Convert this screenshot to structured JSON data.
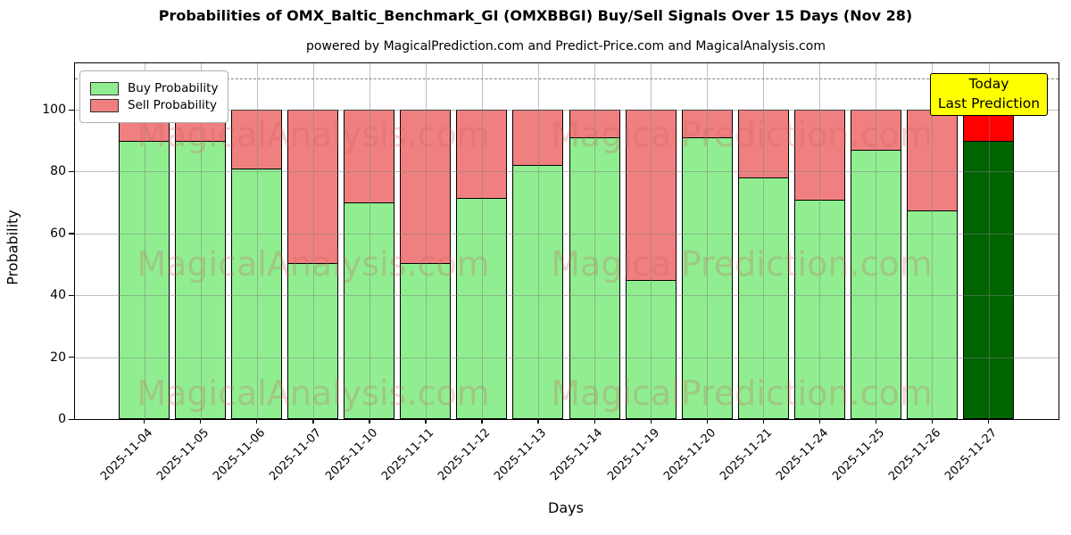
{
  "title": "Probabilities of OMX_Baltic_Benchmark_GI (OMXBBGI) Buy/Sell Signals Over 15 Days (Nov 28)",
  "subtitle": "powered by MagicalPrediction.com and Predict-Price.com and MagicalAnalysis.com",
  "axes": {
    "ylabel": "Probability",
    "xlabel": "Days",
    "yticks": [
      0,
      20,
      40,
      60,
      80,
      100
    ],
    "ylim": [
      0,
      115
    ],
    "dashed_line_y": 110,
    "grid": true
  },
  "legend": {
    "position": "upper left",
    "items": [
      {
        "label": "Buy Probability",
        "color": "#90EE90"
      },
      {
        "label": "Sell Probability",
        "color": "#F08080"
      }
    ]
  },
  "annotation": {
    "line1": "Today",
    "line2": "Last Prediction",
    "bg_color": "#FFFF00",
    "border_color": "#000000"
  },
  "watermarks": {
    "left_text": "MagicalAnalysis.com",
    "right_text": "MagicalPrediction.com"
  },
  "chart_data": {
    "type": "bar",
    "stacked": true,
    "title": "Probabilities of OMX_Baltic_Benchmark_GI (OMXBBGI) Buy/Sell Signals Over 15 Days (Nov 28)",
    "xlabel": "Days",
    "ylabel": "Probability",
    "ylim": [
      0,
      115
    ],
    "categories": [
      "2025-11-04",
      "2025-11-05",
      "2025-11-06",
      "2025-11-07",
      "2025-11-10",
      "2025-11-11",
      "2025-11-12",
      "2025-11-13",
      "2025-11-14",
      "2025-11-19",
      "2025-11-20",
      "2025-11-21",
      "2025-11-24",
      "2025-11-25",
      "2025-11-26",
      "2025-11-27"
    ],
    "series": [
      {
        "name": "Buy Probability",
        "color": "#90EE90",
        "values": [
          90,
          90,
          81,
          50.5,
          70,
          50.5,
          71.5,
          82,
          91,
          45,
          91,
          78,
          71,
          87,
          67.5,
          90
        ]
      },
      {
        "name": "Sell Probability",
        "color": "#F08080",
        "values": [
          10,
          10,
          19,
          49.5,
          30,
          49.5,
          28.5,
          18,
          9,
          55,
          9,
          22,
          29,
          13,
          32.5,
          10
        ]
      }
    ],
    "highlight_last_bar": {
      "category": "2025-11-27",
      "buy_color": "#006400",
      "sell_color": "#FF0000"
    },
    "legend_position": "upper left",
    "grid": true
  }
}
